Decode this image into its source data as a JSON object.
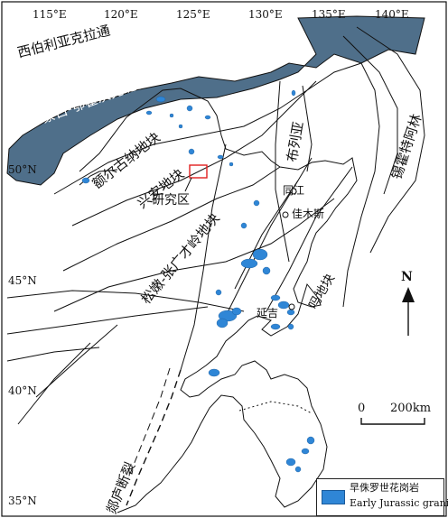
{
  "title": "",
  "longitude_labels": [
    "115°E",
    "120°E",
    "125°E",
    "130°E",
    "135°E",
    "140°E"
  ],
  "latitude_labels": [
    "50°N",
    "45°N",
    "40°N",
    "35°N"
  ],
  "belt_labels": {
    "siberia_craton": "西伯利亚克拉通",
    "mongol_okhotsk": "蒙古-鄂霍茨克缝合带",
    "erguna": "额尔古纳地块",
    "xingan": "兴安地块",
    "songnen": "松嫩-张广才岭地块",
    "bureya": "布列亚",
    "sikhote_alin": "锡霍特阿林",
    "jiamusi_fragment": "吗地块",
    "tanlu_fault": "郯庐断裂"
  },
  "place_labels": {
    "study_area": "研究区",
    "tongjiang": "同江",
    "jiamusi": "佳木斯",
    "yanji": "延吉"
  },
  "scale_bar": {
    "zero": "0",
    "label": "200km"
  },
  "north_arrow": {
    "label": "N"
  },
  "legend": {
    "label_cn": "早侏罗世花岗岩",
    "label_en": "Early Jurassic granite",
    "color": "#2f86d6"
  },
  "colors": {
    "sea": "#4f6f8a",
    "granite": "#2f86d6",
    "study_box": "#e02020",
    "lines": "#111111"
  }
}
